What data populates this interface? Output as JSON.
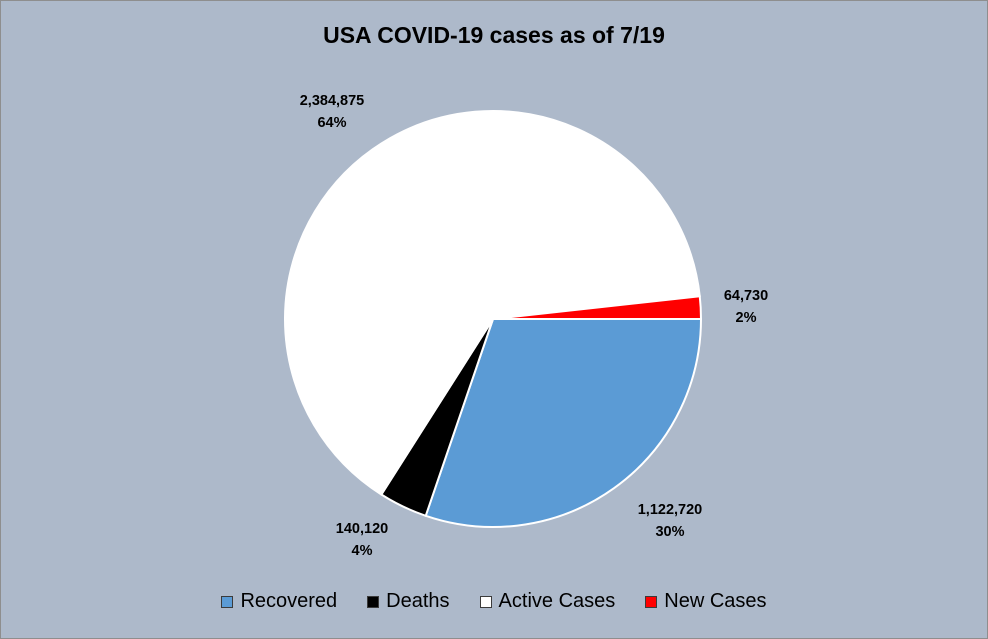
{
  "chart_data": {
    "type": "pie",
    "title": "USA COVID-19 cases as of 7/19",
    "slices": [
      {
        "name": "Recovered",
        "value": 1122720,
        "value_label": "1,122,720",
        "percent_label": "30%",
        "color": "#5b9bd5"
      },
      {
        "name": "Deaths",
        "value": 140120,
        "value_label": "140,120",
        "percent_label": "4%",
        "color": "#000000"
      },
      {
        "name": "Active Cases",
        "value": 2384875,
        "value_label": "2,384,875",
        "percent_label": "64%",
        "color": "#ffffff"
      },
      {
        "name": "New Cases",
        "value": 64730,
        "value_label": "64,730",
        "percent_label": "2%",
        "color": "#ff0000"
      }
    ],
    "legend_position": "bottom",
    "start_angle_deg": 90,
    "direction": "clockwise"
  },
  "colors": {
    "background": "#adb9ca",
    "border": "#8e8e8e"
  }
}
